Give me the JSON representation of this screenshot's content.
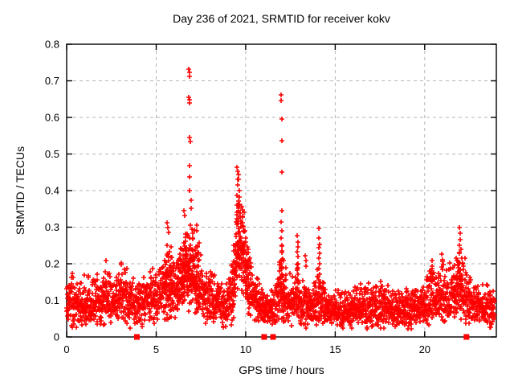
{
  "chart_data": {
    "type": "scatter",
    "title": "Day 236 of 2021, SRMTID for receiver kokv",
    "xlabel": "GPS time / hours",
    "ylabel": "SRMTID / TECUs",
    "xlim": [
      0,
      24
    ],
    "ylim": [
      0,
      0.8
    ],
    "xticks": [
      0,
      5,
      10,
      15,
      20
    ],
    "xtick_labels": [
      "0",
      "5",
      "10",
      "15",
      "20"
    ],
    "yticks": [
      0,
      0.1,
      0.2,
      0.3,
      0.4,
      0.5,
      0.6,
      0.7,
      0.8
    ],
    "ytick_labels": [
      "0",
      "0.1",
      "0.2",
      "0.3",
      "0.4",
      "0.5",
      "0.6",
      "0.7",
      "0.8"
    ],
    "grid": true,
    "legend": "none",
    "marker": "plus",
    "marker_color": "#ff0000",
    "grid_color": "#b4b4b4",
    "axis_color": "#000000",
    "background": "#ffffff",
    "points_per_hour": 120,
    "seed": 20210236,
    "band_profile": [
      [
        0.0,
        0.085,
        0.055
      ],
      [
        0.3,
        0.095,
        0.065
      ],
      [
        0.6,
        0.075,
        0.05
      ],
      [
        1.0,
        0.1,
        0.065
      ],
      [
        1.4,
        0.085,
        0.055
      ],
      [
        1.8,
        0.1,
        0.07
      ],
      [
        2.2,
        0.11,
        0.08
      ],
      [
        2.6,
        0.09,
        0.06
      ],
      [
        3.0,
        0.115,
        0.08
      ],
      [
        3.4,
        0.1,
        0.07
      ],
      [
        3.8,
        0.085,
        0.06
      ],
      [
        4.2,
        0.09,
        0.06
      ],
      [
        4.6,
        0.1,
        0.065
      ],
      [
        5.0,
        0.105,
        0.07
      ],
      [
        5.4,
        0.12,
        0.08
      ],
      [
        5.7,
        0.14,
        0.1
      ],
      [
        6.0,
        0.13,
        0.08
      ],
      [
        6.3,
        0.15,
        0.09
      ],
      [
        6.6,
        0.17,
        0.1
      ],
      [
        6.9,
        0.19,
        0.11
      ],
      [
        7.2,
        0.17,
        0.1
      ],
      [
        7.5,
        0.13,
        0.08
      ],
      [
        7.8,
        0.1,
        0.06
      ],
      [
        8.2,
        0.105,
        0.07
      ],
      [
        8.6,
        0.085,
        0.055
      ],
      [
        9.0,
        0.09,
        0.06
      ],
      [
        9.3,
        0.13,
        0.09
      ],
      [
        9.55,
        0.27,
        0.13
      ],
      [
        9.8,
        0.24,
        0.12
      ],
      [
        10.1,
        0.17,
        0.1
      ],
      [
        10.4,
        0.11,
        0.07
      ],
      [
        10.8,
        0.085,
        0.055
      ],
      [
        11.2,
        0.07,
        0.045
      ],
      [
        11.6,
        0.075,
        0.05
      ],
      [
        12.0,
        0.15,
        0.11
      ],
      [
        12.3,
        0.09,
        0.06
      ],
      [
        12.7,
        0.095,
        0.065
      ],
      [
        12.9,
        0.12,
        0.09
      ],
      [
        13.1,
        0.08,
        0.05
      ],
      [
        13.4,
        0.095,
        0.065
      ],
      [
        13.8,
        0.08,
        0.05
      ],
      [
        14.1,
        0.11,
        0.08
      ],
      [
        14.4,
        0.075,
        0.05
      ],
      [
        14.8,
        0.07,
        0.045
      ],
      [
        15.2,
        0.075,
        0.05
      ],
      [
        15.6,
        0.07,
        0.045
      ],
      [
        16.0,
        0.075,
        0.05
      ],
      [
        16.5,
        0.08,
        0.055
      ],
      [
        16.9,
        0.085,
        0.06
      ],
      [
        17.3,
        0.075,
        0.05
      ],
      [
        17.7,
        0.08,
        0.055
      ],
      [
        18.1,
        0.075,
        0.05
      ],
      [
        18.5,
        0.07,
        0.045
      ],
      [
        19.0,
        0.075,
        0.05
      ],
      [
        19.5,
        0.08,
        0.055
      ],
      [
        20.0,
        0.085,
        0.06
      ],
      [
        20.4,
        0.11,
        0.075
      ],
      [
        20.7,
        0.1,
        0.07
      ],
      [
        21.0,
        0.12,
        0.08
      ],
      [
        21.3,
        0.1,
        0.07
      ],
      [
        21.6,
        0.12,
        0.085
      ],
      [
        21.9,
        0.145,
        0.1
      ],
      [
        22.2,
        0.12,
        0.08
      ],
      [
        22.5,
        0.09,
        0.06
      ],
      [
        22.9,
        0.085,
        0.055
      ],
      [
        23.3,
        0.08,
        0.05
      ],
      [
        23.9,
        0.075,
        0.05
      ]
    ],
    "spike_points": [
      [
        0.35,
        0.163
      ],
      [
        2.2,
        0.208
      ],
      [
        3.05,
        0.203
      ],
      [
        5.62,
        0.312
      ],
      [
        5.66,
        0.298
      ],
      [
        5.7,
        0.285
      ],
      [
        6.55,
        0.345
      ],
      [
        6.58,
        0.332
      ],
      [
        6.83,
        0.731
      ],
      [
        6.85,
        0.722
      ],
      [
        6.86,
        0.711
      ],
      [
        6.83,
        0.656
      ],
      [
        6.85,
        0.649
      ],
      [
        6.86,
        0.639
      ],
      [
        6.87,
        0.546
      ],
      [
        6.89,
        0.534
      ],
      [
        6.85,
        0.468
      ],
      [
        6.88,
        0.438
      ],
      [
        6.86,
        0.401
      ],
      [
        6.95,
        0.373
      ],
      [
        6.97,
        0.352
      ],
      [
        7.25,
        0.305
      ],
      [
        7.28,
        0.29
      ],
      [
        9.52,
        0.463
      ],
      [
        9.55,
        0.452
      ],
      [
        9.58,
        0.444
      ],
      [
        9.62,
        0.431
      ],
      [
        9.56,
        0.416
      ],
      [
        9.63,
        0.399
      ],
      [
        9.5,
        0.386
      ],
      [
        9.6,
        0.372
      ],
      [
        9.65,
        0.36
      ],
      [
        9.58,
        0.345
      ],
      [
        9.68,
        0.33
      ],
      [
        9.72,
        0.31
      ],
      [
        9.97,
        0.29
      ],
      [
        10.0,
        0.27
      ],
      [
        11.98,
        0.661
      ],
      [
        11.99,
        0.646
      ],
      [
        12.0,
        0.596
      ],
      [
        12.01,
        0.536
      ],
      [
        12.0,
        0.451
      ],
      [
        12.02,
        0.346
      ],
      [
        11.97,
        0.315
      ],
      [
        12.03,
        0.29
      ],
      [
        11.99,
        0.27
      ],
      [
        12.01,
        0.25
      ],
      [
        12.0,
        0.23
      ],
      [
        12.02,
        0.21
      ],
      [
        11.98,
        0.19
      ],
      [
        12.03,
        0.17
      ],
      [
        12.88,
        0.276
      ],
      [
        12.9,
        0.259
      ],
      [
        12.92,
        0.246
      ],
      [
        12.87,
        0.233
      ],
      [
        12.93,
        0.219
      ],
      [
        12.9,
        0.201
      ],
      [
        12.89,
        0.186
      ],
      [
        12.91,
        0.171
      ],
      [
        12.88,
        0.156
      ],
      [
        13.33,
        0.222
      ],
      [
        13.35,
        0.208
      ],
      [
        13.36,
        0.194
      ],
      [
        14.08,
        0.296
      ],
      [
        14.1,
        0.271
      ],
      [
        14.12,
        0.253
      ],
      [
        14.09,
        0.244
      ],
      [
        14.11,
        0.229
      ],
      [
        14.1,
        0.216
      ],
      [
        14.13,
        0.201
      ],
      [
        14.07,
        0.186
      ],
      [
        14.12,
        0.171
      ],
      [
        14.1,
        0.156
      ],
      [
        16.85,
        0.147
      ],
      [
        17.55,
        0.152
      ],
      [
        20.4,
        0.208
      ],
      [
        20.43,
        0.193
      ],
      [
        20.37,
        0.181
      ],
      [
        20.95,
        0.226
      ],
      [
        21.0,
        0.211
      ],
      [
        21.05,
        0.197
      ],
      [
        20.98,
        0.184
      ],
      [
        21.95,
        0.298
      ],
      [
        21.97,
        0.283
      ],
      [
        22.0,
        0.266
      ],
      [
        21.92,
        0.251
      ],
      [
        22.02,
        0.24
      ],
      [
        21.94,
        0.229
      ],
      [
        22.05,
        0.216
      ],
      [
        22.1,
        0.2
      ],
      [
        22.15,
        0.185
      ]
    ],
    "zero_marker_x": [
      3.92,
      11.03,
      11.53,
      22.33
    ]
  }
}
